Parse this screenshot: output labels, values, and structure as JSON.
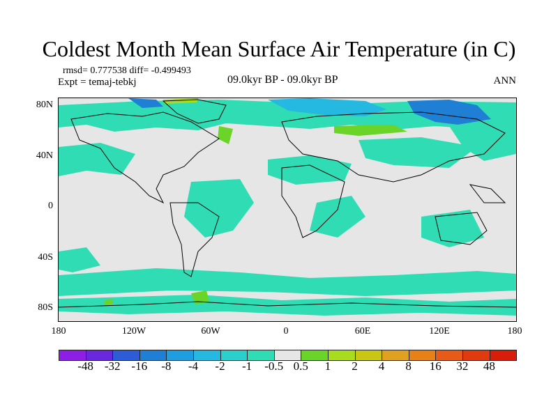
{
  "title": "Coldest Month Mean Surface Air Temperature (in C)",
  "stats": "rmsd= 0.777538 diff= -0.499493",
  "experiment": "Expt = temaj-tebkj",
  "period": "09.0kyr BP - 09.0kyr BP",
  "season": "ANN",
  "y_axis": {
    "ticks": [
      "80N",
      "40N",
      "0",
      "40S",
      "80S"
    ]
  },
  "x_axis": {
    "ticks": [
      "180",
      "120W",
      "60W",
      "0",
      "60E",
      "120E",
      "180"
    ]
  },
  "colorbar": {
    "labels": [
      "-48",
      "-32",
      "-16",
      "-8",
      "-4",
      "-2",
      "-1",
      "-0.5",
      "0.5",
      "1",
      "2",
      "4",
      "8",
      "16",
      "32",
      "48"
    ],
    "colors": [
      "#8c1ee6",
      "#6a28dc",
      "#2c5cd6",
      "#1f7fd4",
      "#1e9ee0",
      "#25b8e0",
      "#2ccfcd",
      "#30dcb4",
      "#e6e6e6",
      "#6ad428",
      "#a8dc1e",
      "#c8c814",
      "#e0a020",
      "#e88018",
      "#e85a18",
      "#e03a10",
      "#d81e0a"
    ]
  },
  "fill_colors": {
    "background": "#e6e6e6",
    "teal": "#30dcb4",
    "cyan": "#25b8e0",
    "blue": "#1f7fd4",
    "green": "#6ad428",
    "lime": "#a8dc1e"
  }
}
